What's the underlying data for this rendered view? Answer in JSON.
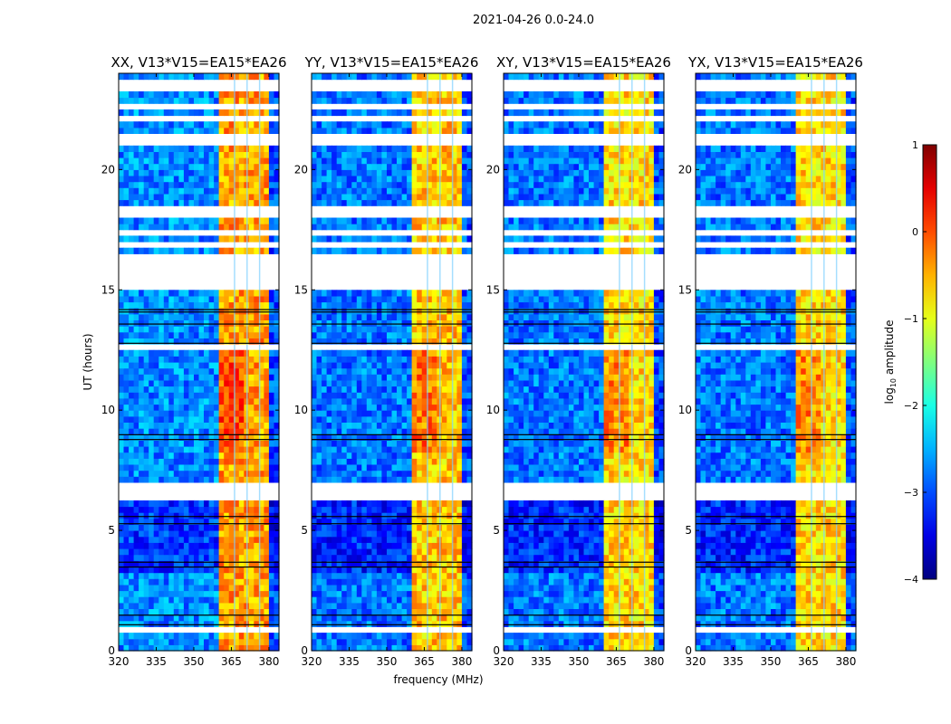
{
  "suptitle": "2021-04-26 0.0-24.0",
  "xlabel": "frequency (MHz)",
  "ylabel": "UT (hours)",
  "chart_data": [
    {
      "type": "heatmap",
      "title": "XX, V13*V15=EA15*EA26",
      "xlim": [
        320,
        384
      ],
      "ylim": [
        0,
        24
      ],
      "xticks": [
        "320",
        "335",
        "350",
        "365",
        "380"
      ],
      "yticks": [
        "0",
        "5",
        "10",
        "15",
        "20"
      ],
      "band_profile": [
        {
          "from": 320,
          "to": 360,
          "level": -2.7
        },
        {
          "from": 360,
          "to": 380,
          "level": -0.4
        },
        {
          "from": 380,
          "to": 384,
          "level": -3.0
        }
      ],
      "band_gaps": [
        366,
        371,
        376
      ],
      "flagged_hours": [
        [
          0.65,
          0.9
        ],
        [
          6.3,
          6.45
        ],
        [
          6.6,
          6.75
        ],
        [
          6.85,
          7.0
        ],
        [
          12.6,
          12.7
        ],
        [
          14.95,
          16.45
        ],
        [
          16.8,
          16.9
        ],
        [
          17.25,
          17.5
        ],
        [
          17.7,
          17.85
        ],
        [
          18.05,
          18.4
        ],
        [
          20.95,
          21.5
        ],
        [
          21.7,
          21.85
        ],
        [
          22.05,
          22.35
        ],
        [
          22.5,
          22.8
        ],
        [
          23.3,
          23.85
        ]
      ],
      "dark_hours": [
        1.1,
        1.5,
        3.5,
        3.7,
        5.3,
        5.6,
        8.8,
        9.0,
        12.8,
        13.6,
        14.1,
        14.2
      ]
    },
    {
      "type": "heatmap",
      "title": "YY, V13*V15=EA15*EA26",
      "xlim": [
        320,
        384
      ],
      "ylim": [
        0,
        24
      ],
      "xticks": [
        "320",
        "335",
        "350",
        "365",
        "380"
      ],
      "yticks": [
        "0",
        "5",
        "10",
        "15",
        "20"
      ],
      "band_profile": [
        {
          "from": 320,
          "to": 360,
          "level": -2.8
        },
        {
          "from": 360,
          "to": 380,
          "level": -0.6
        },
        {
          "from": 380,
          "to": 384,
          "level": -3.0
        }
      ],
      "band_gaps": [
        366,
        371,
        376
      ],
      "flagged_hours": [
        [
          0.65,
          0.9
        ],
        [
          6.3,
          6.45
        ],
        [
          6.6,
          6.75
        ],
        [
          6.85,
          7.0
        ],
        [
          12.6,
          12.7
        ],
        [
          14.95,
          16.45
        ],
        [
          16.8,
          16.9
        ],
        [
          17.25,
          17.5
        ],
        [
          17.7,
          17.85
        ],
        [
          18.05,
          18.4
        ],
        [
          20.95,
          21.5
        ],
        [
          21.7,
          21.85
        ],
        [
          22.05,
          22.35
        ],
        [
          22.5,
          22.8
        ],
        [
          23.3,
          23.85
        ]
      ],
      "dark_hours": [
        1.1,
        1.5,
        3.5,
        3.7,
        5.3,
        5.6,
        8.8,
        9.0,
        12.8,
        13.6,
        14.1,
        14.2
      ]
    },
    {
      "type": "heatmap",
      "title": "XY, V13*V15=EA15*EA26",
      "xlim": [
        320,
        384
      ],
      "ylim": [
        0,
        24
      ],
      "xticks": [
        "320",
        "335",
        "350",
        "365",
        "380"
      ],
      "yticks": [
        "0",
        "5",
        "10",
        "15",
        "20"
      ],
      "band_profile": [
        {
          "from": 320,
          "to": 360,
          "level": -2.8
        },
        {
          "from": 360,
          "to": 380,
          "level": -0.7
        },
        {
          "from": 380,
          "to": 384,
          "level": -3.0
        }
      ],
      "band_gaps": [
        366,
        371,
        376
      ],
      "flagged_hours": [
        [
          0.65,
          0.9
        ],
        [
          6.3,
          6.45
        ],
        [
          6.6,
          6.75
        ],
        [
          6.85,
          7.0
        ],
        [
          12.6,
          12.7
        ],
        [
          14.95,
          16.45
        ],
        [
          16.8,
          16.9
        ],
        [
          17.25,
          17.5
        ],
        [
          17.7,
          17.85
        ],
        [
          18.05,
          18.4
        ],
        [
          20.95,
          21.5
        ],
        [
          21.7,
          21.85
        ],
        [
          22.05,
          22.35
        ],
        [
          22.5,
          22.8
        ],
        [
          23.3,
          23.85
        ]
      ],
      "dark_hours": [
        1.1,
        1.5,
        3.5,
        3.7,
        5.3,
        5.6,
        8.8,
        9.0,
        12.8,
        13.6,
        14.1,
        14.2
      ]
    },
    {
      "type": "heatmap",
      "title": "YX, V13*V15=EA15*EA26",
      "xlim": [
        320,
        384
      ],
      "ylim": [
        0,
        24
      ],
      "xticks": [
        "320",
        "335",
        "350",
        "365",
        "380"
      ],
      "yticks": [
        "0",
        "5",
        "10",
        "15",
        "20"
      ],
      "band_profile": [
        {
          "from": 320,
          "to": 360,
          "level": -2.8
        },
        {
          "from": 360,
          "to": 380,
          "level": -0.7
        },
        {
          "from": 380,
          "to": 384,
          "level": -3.0
        }
      ],
      "band_gaps": [
        366,
        371,
        376
      ],
      "flagged_hours": [
        [
          0.65,
          0.9
        ],
        [
          6.3,
          6.45
        ],
        [
          6.6,
          6.75
        ],
        [
          6.85,
          7.0
        ],
        [
          12.6,
          12.7
        ],
        [
          14.95,
          16.45
        ],
        [
          16.8,
          16.9
        ],
        [
          17.25,
          17.5
        ],
        [
          17.7,
          17.85
        ],
        [
          18.05,
          18.4
        ],
        [
          20.95,
          21.5
        ],
        [
          21.7,
          21.85
        ],
        [
          22.05,
          22.35
        ],
        [
          22.5,
          22.8
        ],
        [
          23.3,
          23.85
        ]
      ],
      "dark_hours": [
        1.1,
        1.5,
        3.5,
        3.7,
        5.3,
        5.6,
        8.8,
        9.0,
        12.8,
        13.6,
        14.1,
        14.2
      ]
    }
  ],
  "colorbar": {
    "label_prefix": "log",
    "label_sub": "10",
    "label_suffix": " amplitude",
    "range": [
      -4,
      1
    ],
    "ticks": [
      "1",
      "0",
      "−1",
      "−2",
      "−3",
      "−4"
    ]
  }
}
